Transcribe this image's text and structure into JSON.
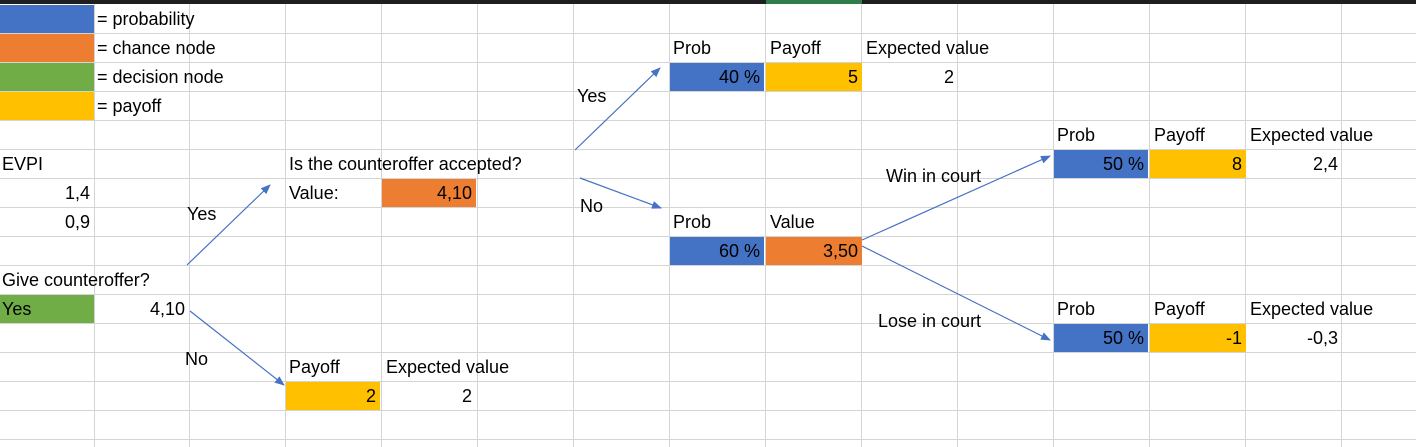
{
  "legend": {
    "probability": "= probability",
    "chance_node": "= chance node",
    "decision_node": "= decision node",
    "payoff": "= payoff"
  },
  "colors": {
    "probability": "#4472c4",
    "chance_node": "#ed7d31",
    "decision_node": "#70ad47",
    "payoff": "#ffc000"
  },
  "evpi": {
    "label": "EVPI",
    "value1": "1,4",
    "value2": "0,9"
  },
  "root": {
    "question": "Give counteroffer?",
    "decision": "Yes",
    "value": "4,10"
  },
  "branch_labels": {
    "yes1": "Yes",
    "no1": "No",
    "yes2": "Yes",
    "no2": "No",
    "win": "Win in court",
    "lose": "Lose in court"
  },
  "accepted_node": {
    "question": "Is the counteroffer accepted?",
    "value_label": "Value:",
    "value": "4,10"
  },
  "no_counter": {
    "payoff_header": "Payoff",
    "ev_header": "Expected value",
    "payoff": "2",
    "ev": "2"
  },
  "accepted_yes": {
    "prob_header": "Prob",
    "payoff_header": "Payoff",
    "ev_header": "Expected value",
    "prob": "40 %",
    "payoff": "5",
    "ev": "2"
  },
  "accepted_no": {
    "prob_header": "Prob",
    "value_header": "Value",
    "prob": "60 %",
    "value": "3,50"
  },
  "win": {
    "prob_header": "Prob",
    "payoff_header": "Payoff",
    "ev_header": "Expected value",
    "prob": "50 %",
    "payoff": "8",
    "ev": "2,4"
  },
  "lose": {
    "prob_header": "Prob",
    "payoff_header": "Payoff",
    "ev_header": "Expected value",
    "prob": "50 %",
    "payoff": "-1",
    "ev": "-0,3"
  }
}
